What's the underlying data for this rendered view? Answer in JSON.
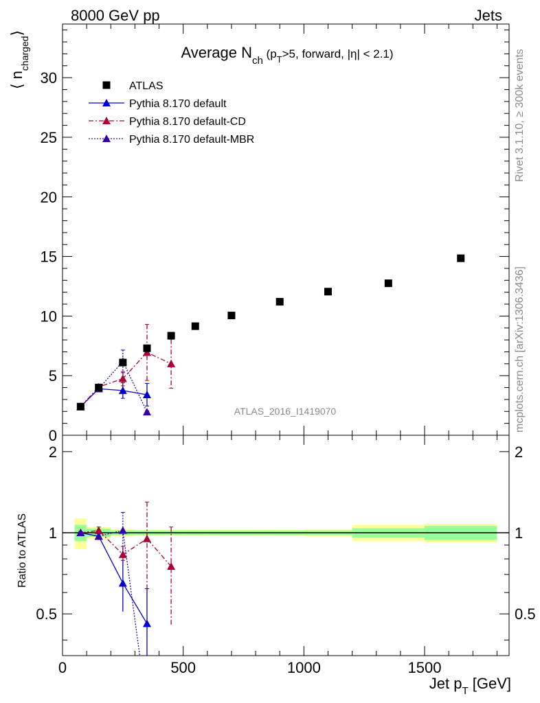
{
  "header": {
    "energy_label": "8000 GeV pp",
    "category_label": "Jets"
  },
  "side_text": {
    "rivet": "Rivet 3.1.10, ≥ 300k events",
    "mcplots": "mcplots.cern.ch [arXiv:1306.3436]"
  },
  "watermark": "ATLAS_2016_I1419070",
  "colors": {
    "atlas": "#000000",
    "default": "#0000cc",
    "cd": "#aa0033",
    "mbr": "#3300aa",
    "band_inner": "#99ff99",
    "band_outer": "#ffff99"
  },
  "chart_data": [
    {
      "type": "scatter",
      "title_parts": {
        "main": "Average N",
        "sub1": "ch",
        "mid1": " (p",
        "sub2": "T",
        "mid2": ">5, forward, |η| < 2.1)"
      },
      "ylabel_parts": {
        "open": "⟨ n",
        "sub": "charged",
        "close": "⟩"
      },
      "xlim": [
        0,
        1850
      ],
      "ylim": [
        0,
        34.5
      ],
      "yticks": [
        0,
        5,
        10,
        15,
        20,
        25,
        30
      ],
      "ytick_labels": [
        "0",
        "5",
        "10",
        "15",
        "20",
        "25",
        "30"
      ],
      "legend_position": "top-left",
      "series": [
        {
          "name": "ATLAS",
          "marker": "square",
          "color": "#000000",
          "x": [
            75,
            150,
            250,
            350,
            450,
            550,
            700,
            900,
            1100,
            1350,
            1650
          ],
          "y": [
            2.4,
            4.0,
            6.1,
            7.3,
            8.35,
            9.15,
            10.05,
            11.2,
            12.05,
            12.75,
            14.85
          ]
        },
        {
          "name": "Pythia 8.170 default",
          "marker": "triangle",
          "line": "solid",
          "color": "#0000cc",
          "x": [
            75,
            150,
            250,
            350
          ],
          "y": [
            2.4,
            3.9,
            3.75,
            3.4
          ],
          "err": [
            0.1,
            0.2,
            0.65,
            0.95
          ]
        },
        {
          "name": "Pythia 8.170 default-CD",
          "marker": "triangle",
          "line": "dashdot",
          "color": "#aa0033",
          "x": [
            75,
            150,
            250,
            350,
            450
          ],
          "y": [
            2.4,
            4.05,
            4.75,
            6.95,
            6.0
          ],
          "err": [
            0.1,
            0.25,
            0.6,
            2.35,
            2.05
          ]
        },
        {
          "name": "Pythia 8.170 default-MBR",
          "marker": "triangle",
          "line": "dotted",
          "color": "#3300aa",
          "x": [
            75,
            150,
            250,
            350
          ],
          "y": [
            2.4,
            3.9,
            6.2,
            1.95
          ],
          "err": [
            0.1,
            0.15,
            0.95,
            0.1
          ]
        }
      ]
    },
    {
      "type": "scatter",
      "ylabel": "Ratio to ATLAS",
      "xlabel_parts": {
        "main": "Jet p",
        "sub": "T",
        "unit": " [GeV]"
      },
      "xlim": [
        0,
        1850
      ],
      "ylim": [
        0.35,
        2.3
      ],
      "yscale": "log",
      "xticks": [
        0,
        500,
        1000,
        1500
      ],
      "xtick_labels": [
        "0",
        "500",
        "1000",
        "1500"
      ],
      "yticks": [
        0.5,
        1,
        2
      ],
      "ytick_labels": [
        "0.5",
        "1",
        "2"
      ],
      "reference_bands": {
        "edges": [
          50,
          100,
          200,
          300,
          400,
          500,
          600,
          800,
          1000,
          1200,
          1500,
          1800
        ],
        "inner": [
          0.07,
          0.035,
          0.02,
          0.02,
          0.02,
          0.02,
          0.02,
          0.02,
          0.02,
          0.04,
          0.06
        ],
        "outer": [
          0.13,
          0.05,
          0.03,
          0.025,
          0.025,
          0.025,
          0.025,
          0.025,
          0.03,
          0.07,
          0.08
        ]
      },
      "series": [
        {
          "name": "Pythia 8.170 default",
          "color": "#0000cc",
          "line": "solid",
          "x": [
            75,
            150,
            250,
            350
          ],
          "y": [
            1.0,
            0.97,
            0.65,
            0.46
          ],
          "err": [
            0.01,
            0.03,
            0.14,
            0.16
          ]
        },
        {
          "name": "Pythia 8.170 default-CD",
          "color": "#aa0033",
          "line": "dashdot",
          "x": [
            75,
            150,
            250,
            350,
            450
          ],
          "y": [
            1.0,
            1.02,
            0.83,
            0.95,
            0.75
          ],
          "err": [
            0.01,
            0.03,
            0.06,
            0.35,
            0.3
          ]
        },
        {
          "name": "Pythia 8.170 default-MBR",
          "color": "#3300aa",
          "line": "dotted",
          "x": [
            75,
            150,
            250,
            320
          ],
          "y": [
            1.0,
            0.97,
            1.02,
            0.35
          ],
          "err": [
            0.01,
            0.02,
            0.17,
            0.0
          ]
        }
      ]
    }
  ]
}
